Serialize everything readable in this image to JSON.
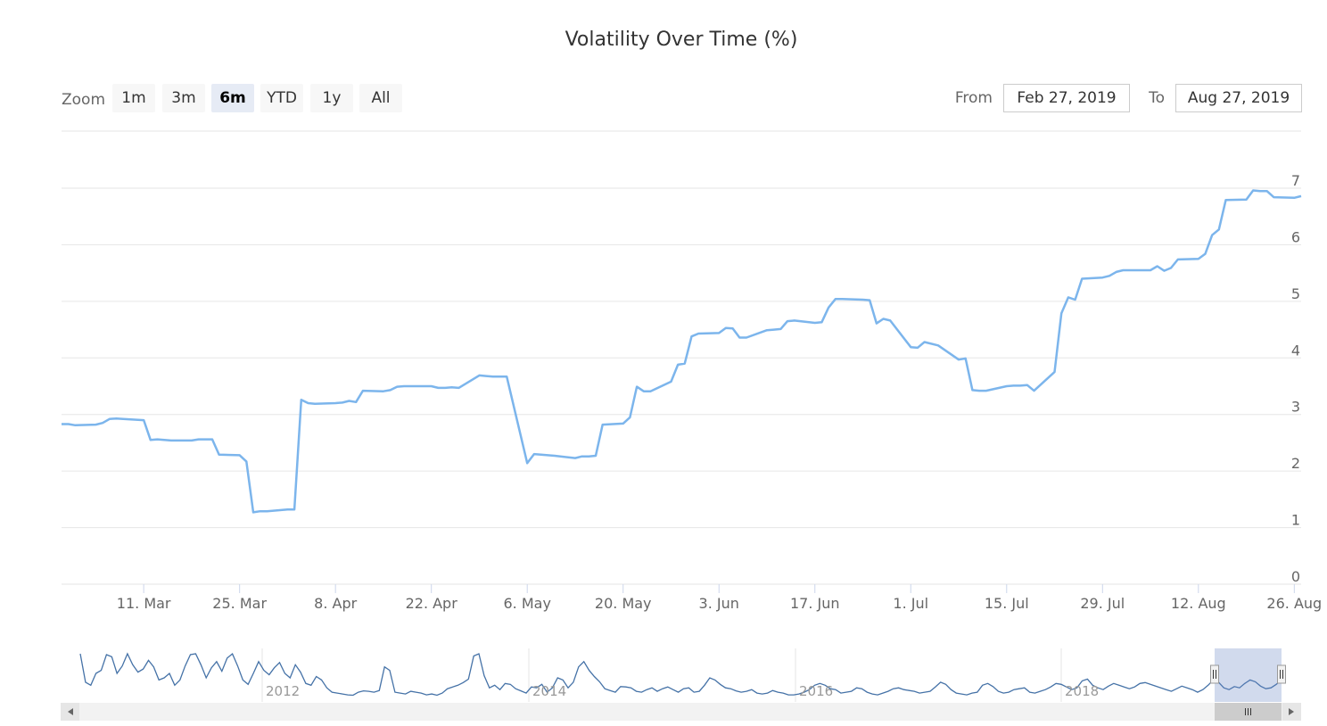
{
  "chart_data": {
    "type": "line",
    "title": "Volatility Over Time (%)",
    "zoom": {
      "label": "Zoom",
      "buttons": [
        "1m",
        "3m",
        "6m",
        "YTD",
        "1y",
        "All"
      ],
      "selected": "6m"
    },
    "range_selector": {
      "from_label": "From",
      "from_value": "Feb 27, 2019",
      "to_label": "To",
      "to_value": "Aug 27, 2019"
    },
    "ylim": [
      0,
      7
    ],
    "yticks": [
      "0",
      "1",
      "2",
      "3",
      "4",
      "5",
      "6",
      "7"
    ],
    "y_axis_side": "right",
    "grid": true,
    "xlim": [
      "2019-02-27",
      "2019-08-27"
    ],
    "xticks": [
      {
        "date": "2019-03-11",
        "label": "11. Mar"
      },
      {
        "date": "2019-03-25",
        "label": "25. Mar"
      },
      {
        "date": "2019-04-08",
        "label": "8. Apr"
      },
      {
        "date": "2019-04-22",
        "label": "22. Apr"
      },
      {
        "date": "2019-05-06",
        "label": "6. May"
      },
      {
        "date": "2019-05-20",
        "label": "20. May"
      },
      {
        "date": "2019-06-03",
        "label": "3. Jun"
      },
      {
        "date": "2019-06-17",
        "label": "17. Jun"
      },
      {
        "date": "2019-07-01",
        "label": "1. Jul"
      },
      {
        "date": "2019-07-15",
        "label": "15. Jul"
      },
      {
        "date": "2019-07-29",
        "label": "29. Jul"
      },
      {
        "date": "2019-08-12",
        "label": "12. Aug"
      },
      {
        "date": "2019-08-26",
        "label": "26. Aug"
      }
    ],
    "series": [
      {
        "color": "#7cb5ec",
        "points": [
          [
            "2019-02-27",
            2.83
          ],
          [
            "2019-02-28",
            2.83
          ],
          [
            "2019-03-01",
            2.81
          ],
          [
            "2019-03-04",
            2.82
          ],
          [
            "2019-03-05",
            2.85
          ],
          [
            "2019-03-06",
            2.92
          ],
          [
            "2019-03-07",
            2.93
          ],
          [
            "2019-03-08",
            2.92
          ],
          [
            "2019-03-11",
            2.9
          ],
          [
            "2019-03-12",
            2.55
          ],
          [
            "2019-03-13",
            2.56
          ],
          [
            "2019-03-14",
            2.55
          ],
          [
            "2019-03-15",
            2.54
          ],
          [
            "2019-03-18",
            2.54
          ],
          [
            "2019-03-19",
            2.56
          ],
          [
            "2019-03-20",
            2.56
          ],
          [
            "2019-03-21",
            2.56
          ],
          [
            "2019-03-22",
            2.29
          ],
          [
            "2019-03-25",
            2.28
          ],
          [
            "2019-03-26",
            2.17
          ],
          [
            "2019-03-27",
            1.27
          ],
          [
            "2019-03-28",
            1.29
          ],
          [
            "2019-03-29",
            1.29
          ],
          [
            "2019-04-01",
            1.32
          ],
          [
            "2019-04-02",
            1.32
          ],
          [
            "2019-04-03",
            3.26
          ],
          [
            "2019-04-04",
            3.2
          ],
          [
            "2019-04-05",
            3.19
          ],
          [
            "2019-04-08",
            3.2
          ],
          [
            "2019-04-09",
            3.21
          ],
          [
            "2019-04-10",
            3.24
          ],
          [
            "2019-04-11",
            3.22
          ],
          [
            "2019-04-12",
            3.42
          ],
          [
            "2019-04-15",
            3.41
          ],
          [
            "2019-04-16",
            3.43
          ],
          [
            "2019-04-17",
            3.49
          ],
          [
            "2019-04-18",
            3.5
          ],
          [
            "2019-04-22",
            3.5
          ],
          [
            "2019-04-23",
            3.47
          ],
          [
            "2019-04-24",
            3.47
          ],
          [
            "2019-04-25",
            3.48
          ],
          [
            "2019-04-26",
            3.47
          ],
          [
            "2019-04-29",
            3.69
          ],
          [
            "2019-04-30",
            3.68
          ],
          [
            "2019-05-01",
            3.67
          ],
          [
            "2019-05-02",
            3.67
          ],
          [
            "2019-05-03",
            3.67
          ],
          [
            "2019-05-06",
            2.14
          ],
          [
            "2019-05-07",
            2.3
          ],
          [
            "2019-05-08",
            2.29
          ],
          [
            "2019-05-09",
            2.28
          ],
          [
            "2019-05-10",
            2.27
          ],
          [
            "2019-05-13",
            2.23
          ],
          [
            "2019-05-14",
            2.26
          ],
          [
            "2019-05-15",
            2.26
          ],
          [
            "2019-05-16",
            2.27
          ],
          [
            "2019-05-17",
            2.82
          ],
          [
            "2019-05-20",
            2.84
          ],
          [
            "2019-05-21",
            2.95
          ],
          [
            "2019-05-22",
            3.49
          ],
          [
            "2019-05-23",
            3.41
          ],
          [
            "2019-05-24",
            3.41
          ],
          [
            "2019-05-27",
            3.58
          ],
          [
            "2019-05-28",
            3.88
          ],
          [
            "2019-05-29",
            3.9
          ],
          [
            "2019-05-30",
            4.38
          ],
          [
            "2019-05-31",
            4.43
          ],
          [
            "2019-06-03",
            4.44
          ],
          [
            "2019-06-04",
            4.53
          ],
          [
            "2019-06-05",
            4.52
          ],
          [
            "2019-06-06",
            4.36
          ],
          [
            "2019-06-07",
            4.36
          ],
          [
            "2019-06-10",
            4.49
          ],
          [
            "2019-06-11",
            4.5
          ],
          [
            "2019-06-12",
            4.51
          ],
          [
            "2019-06-13",
            4.65
          ],
          [
            "2019-06-14",
            4.66
          ],
          [
            "2019-06-17",
            4.62
          ],
          [
            "2019-06-18",
            4.63
          ],
          [
            "2019-06-19",
            4.89
          ],
          [
            "2019-06-20",
            5.04
          ],
          [
            "2019-06-21",
            5.04
          ],
          [
            "2019-06-24",
            5.03
          ],
          [
            "2019-06-25",
            5.02
          ],
          [
            "2019-06-26",
            4.61
          ],
          [
            "2019-06-27",
            4.69
          ],
          [
            "2019-06-28",
            4.66
          ],
          [
            "2019-07-01",
            4.19
          ],
          [
            "2019-07-02",
            4.18
          ],
          [
            "2019-07-03",
            4.28
          ],
          [
            "2019-07-05",
            4.22
          ],
          [
            "2019-07-08",
            3.97
          ],
          [
            "2019-07-09",
            3.99
          ],
          [
            "2019-07-10",
            3.43
          ],
          [
            "2019-07-11",
            3.42
          ],
          [
            "2019-07-12",
            3.42
          ],
          [
            "2019-07-15",
            3.5
          ],
          [
            "2019-07-16",
            3.51
          ],
          [
            "2019-07-17",
            3.51
          ],
          [
            "2019-07-18",
            3.52
          ],
          [
            "2019-07-19",
            3.42
          ],
          [
            "2019-07-22",
            3.75
          ],
          [
            "2019-07-23",
            4.79
          ],
          [
            "2019-07-24",
            5.07
          ],
          [
            "2019-07-25",
            5.03
          ],
          [
            "2019-07-26",
            5.4
          ],
          [
            "2019-07-29",
            5.42
          ],
          [
            "2019-07-30",
            5.45
          ],
          [
            "2019-07-31",
            5.52
          ],
          [
            "2019-08-01",
            5.55
          ],
          [
            "2019-08-02",
            5.55
          ],
          [
            "2019-08-05",
            5.55
          ],
          [
            "2019-08-06",
            5.62
          ],
          [
            "2019-08-07",
            5.54
          ],
          [
            "2019-08-08",
            5.59
          ],
          [
            "2019-08-09",
            5.74
          ],
          [
            "2019-08-12",
            5.75
          ],
          [
            "2019-08-13",
            5.84
          ],
          [
            "2019-08-14",
            6.17
          ],
          [
            "2019-08-15",
            6.27
          ],
          [
            "2019-08-16",
            6.79
          ],
          [
            "2019-08-19",
            6.8
          ],
          [
            "2019-08-20",
            6.96
          ],
          [
            "2019-08-21",
            6.95
          ],
          [
            "2019-08-22",
            6.95
          ],
          [
            "2019-08-23",
            6.84
          ],
          [
            "2019-08-26",
            6.83
          ],
          [
            "2019-08-27",
            6.86
          ]
        ]
      }
    ],
    "navigator": {
      "tick_labels": [
        "2012",
        "2014",
        "2016",
        "2018"
      ],
      "series": [
        1.0,
        0.35,
        0.28,
        0.55,
        0.62,
        0.98,
        0.93,
        0.55,
        0.72,
        1.0,
        0.75,
        0.58,
        0.65,
        0.85,
        0.7,
        0.4,
        0.45,
        0.55,
        0.28,
        0.4,
        0.72,
        0.98,
        1.0,
        0.75,
        0.45,
        0.68,
        0.82,
        0.6,
        0.9,
        1.0,
        0.72,
        0.4,
        0.3,
        0.55,
        0.82,
        0.62,
        0.52,
        0.68,
        0.8,
        0.55,
        0.45,
        0.75,
        0.58,
        0.32,
        0.28,
        0.48,
        0.4,
        0.22,
        0.12,
        0.1,
        0.08,
        0.06,
        0.05,
        0.12,
        0.15,
        0.14,
        0.12,
        0.16,
        0.7,
        0.62,
        0.12,
        0.1,
        0.08,
        0.14,
        0.12,
        0.1,
        0.06,
        0.08,
        0.05,
        0.1,
        0.2,
        0.24,
        0.28,
        0.34,
        0.42,
        0.95,
        1.0,
        0.5,
        0.22,
        0.28,
        0.18,
        0.32,
        0.3,
        0.2,
        0.15,
        0.1,
        0.24,
        0.22,
        0.3,
        0.12,
        0.22,
        0.45,
        0.4,
        0.22,
        0.35,
        0.7,
        0.82,
        0.62,
        0.48,
        0.36,
        0.2,
        0.16,
        0.12,
        0.25,
        0.24,
        0.22,
        0.14,
        0.12,
        0.18,
        0.22,
        0.14,
        0.2,
        0.24,
        0.18,
        0.12,
        0.2,
        0.22,
        0.12,
        0.14,
        0.28,
        0.45,
        0.4,
        0.3,
        0.22,
        0.2,
        0.15,
        0.12,
        0.14,
        0.18,
        0.1,
        0.08,
        0.1,
        0.16,
        0.12,
        0.1,
        0.06,
        0.06,
        0.08,
        0.12,
        0.18,
        0.28,
        0.32,
        0.28,
        0.2,
        0.18,
        0.1,
        0.12,
        0.14,
        0.22,
        0.2,
        0.12,
        0.08,
        0.06,
        0.1,
        0.14,
        0.2,
        0.22,
        0.18,
        0.16,
        0.14,
        0.1,
        0.12,
        0.14,
        0.24,
        0.35,
        0.3,
        0.18,
        0.1,
        0.08,
        0.06,
        0.1,
        0.12,
        0.28,
        0.32,
        0.25,
        0.14,
        0.1,
        0.12,
        0.18,
        0.2,
        0.22,
        0.12,
        0.1,
        0.14,
        0.18,
        0.24,
        0.32,
        0.3,
        0.24,
        0.18,
        0.22,
        0.38,
        0.42,
        0.28,
        0.22,
        0.18,
        0.26,
        0.32,
        0.28,
        0.24,
        0.2,
        0.24,
        0.32,
        0.34,
        0.3,
        0.26,
        0.22,
        0.18,
        0.14,
        0.2,
        0.26,
        0.22,
        0.18,
        0.12,
        0.18,
        0.28,
        0.4,
        0.35,
        0.22,
        0.18,
        0.25,
        0.22,
        0.32,
        0.4,
        0.36,
        0.26,
        0.2,
        0.22,
        0.3,
        0.4
      ],
      "window_start_fraction": 0.9478,
      "window_end_fraction": 1.0
    }
  }
}
